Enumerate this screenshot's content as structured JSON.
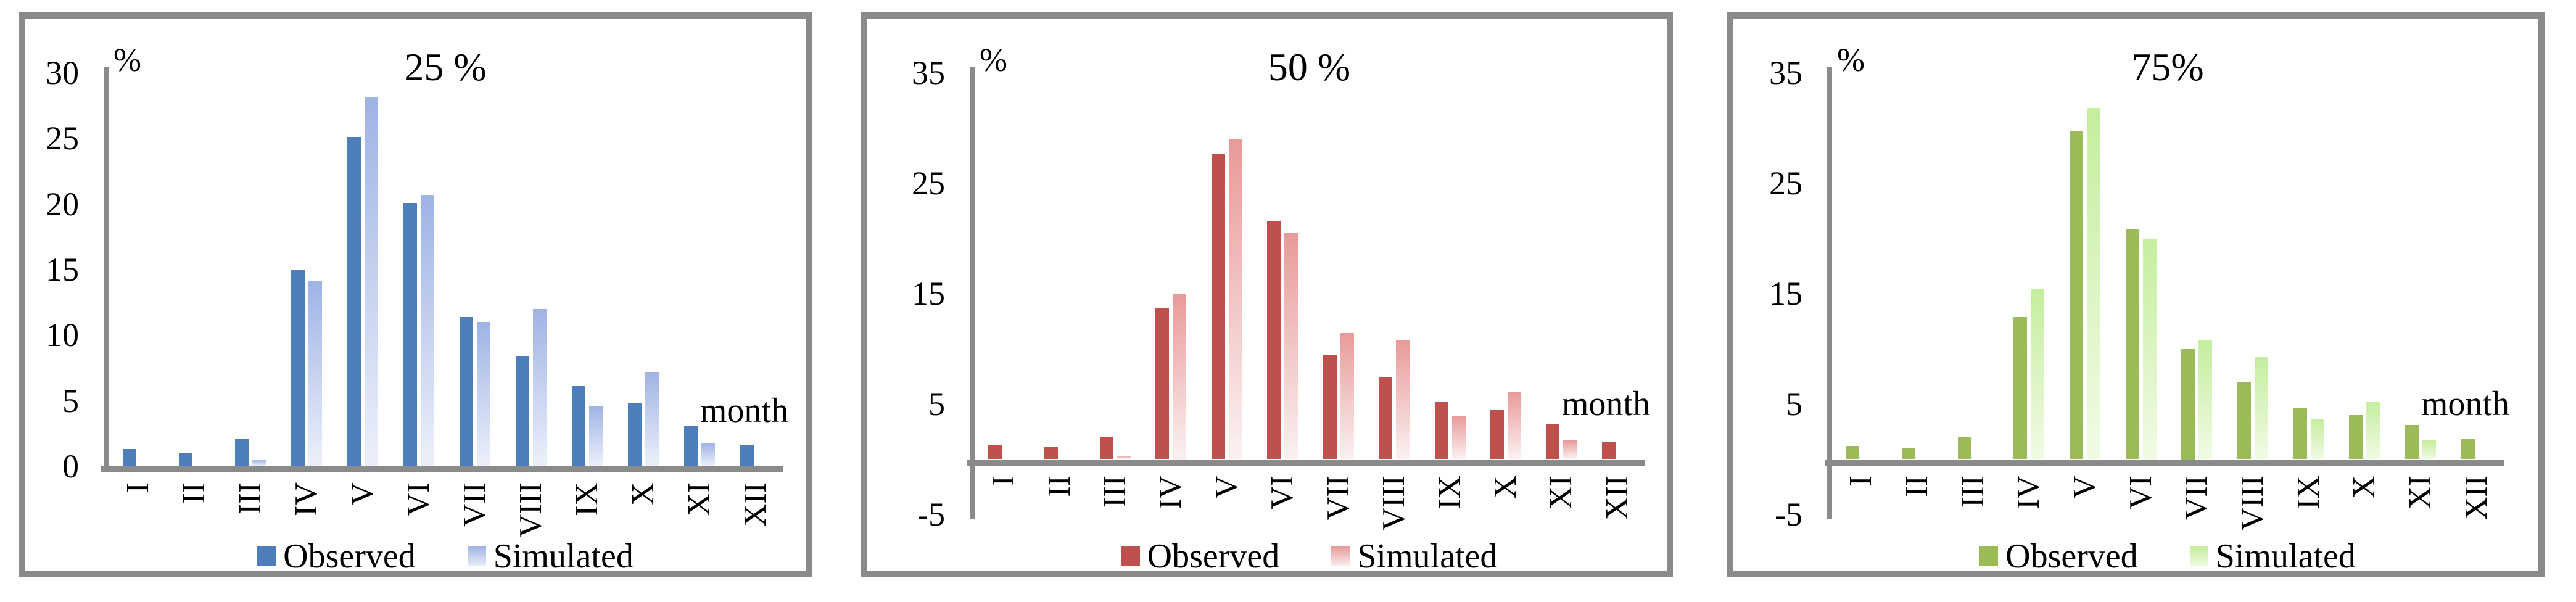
{
  "figure": {
    "background": "#ffffff",
    "panel_border_color": "#8a8a8a",
    "axis_color": "#8a8a8a",
    "text_color": "#000000"
  },
  "chart_data": [
    {
      "type": "bar",
      "title": "25 %",
      "ylabel": "%",
      "xlabel": "month",
      "categories": [
        "I",
        "II",
        "III",
        "IV",
        "V",
        "VI",
        "VII",
        "VIII",
        "IX",
        "X",
        "XI",
        "XII"
      ],
      "series": [
        {
          "name": "Observed",
          "values": [
            1.3,
            1.0,
            2.1,
            15.0,
            25.1,
            20.1,
            11.4,
            8.4,
            6.1,
            4.8,
            3.1,
            1.6
          ]
        },
        {
          "name": "Simulated",
          "values": [
            null,
            null,
            0.5,
            14.1,
            28.1,
            20.7,
            11.0,
            12.0,
            4.6,
            7.2,
            1.8,
            null
          ]
        }
      ],
      "ylim": [
        0,
        30
      ],
      "yticks": [
        0,
        5,
        10,
        15,
        20,
        25,
        30
      ],
      "grid": false,
      "legend_position": "bottom",
      "colors": {
        "observed": "#4D7EBB",
        "simulated_top": "#9FB3E4",
        "simulated_bottom": "#EAEEF9"
      }
    },
    {
      "type": "bar",
      "title": "50 %",
      "ylabel": "%",
      "xlabel": "month",
      "categories": [
        "I",
        "II",
        "III",
        "IV",
        "V",
        "VI",
        "VII",
        "VIII",
        "IX",
        "X",
        "XI",
        "XII"
      ],
      "series": [
        {
          "name": "Observed",
          "values": [
            1.3,
            1.1,
            2.0,
            13.7,
            27.6,
            21.6,
            9.4,
            7.4,
            5.2,
            4.5,
            3.2,
            1.6
          ]
        },
        {
          "name": "Simulated",
          "values": [
            null,
            null,
            0.3,
            15.0,
            29.0,
            20.5,
            11.4,
            10.8,
            3.9,
            6.1,
            1.7,
            null
          ]
        }
      ],
      "ylim": [
        -5,
        35
      ],
      "yticks": [
        -5,
        5,
        15,
        25,
        35
      ],
      "grid": false,
      "legend_position": "bottom",
      "colors": {
        "observed": "#C0504D",
        "simulated_top": "#E89A99",
        "simulated_bottom": "#FAEEEE"
      }
    },
    {
      "type": "bar",
      "title": "75%",
      "ylabel": "%",
      "xlabel": "month",
      "categories": [
        "I",
        "II",
        "III",
        "IV",
        "V",
        "VI",
        "VII",
        "VIII",
        "IX",
        "X",
        "XI",
        "XII"
      ],
      "series": [
        {
          "name": "Observed",
          "values": [
            1.2,
            1.0,
            2.0,
            12.9,
            29.7,
            20.8,
            10.0,
            7.0,
            4.6,
            4.0,
            3.1,
            1.8
          ]
        },
        {
          "name": "Simulated",
          "values": [
            null,
            null,
            null,
            15.4,
            31.8,
            20.0,
            10.8,
            9.3,
            3.6,
            5.2,
            1.7,
            null
          ]
        }
      ],
      "ylim": [
        -5,
        35
      ],
      "yticks": [
        -5,
        5,
        15,
        25,
        35
      ],
      "grid": false,
      "legend_position": "bottom",
      "colors": {
        "observed": "#9BBB59",
        "simulated_top": "#C5EE9D",
        "simulated_bottom": "#F0FAE3"
      }
    }
  ]
}
